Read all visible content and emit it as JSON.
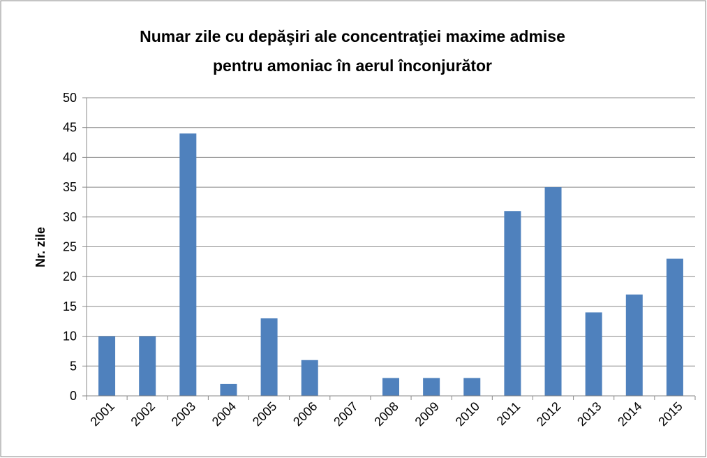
{
  "chart_data": {
    "type": "bar",
    "title": [
      "Numar zile cu depăşiri ale concentraţiei maxime admise",
      "pentru amoniac în aerul înconjurător"
    ],
    "y_label": "Nr. zile",
    "categories": [
      "2001",
      "2002",
      "2003",
      "2004",
      "2005",
      "2006",
      "2007",
      "2008",
      "2009",
      "2010",
      "2011",
      "2012",
      "2013",
      "2014",
      "2015"
    ],
    "values": [
      10,
      10,
      44,
      2,
      13,
      6,
      0,
      3,
      3,
      3,
      31,
      35,
      14,
      17,
      23
    ],
    "color": "#4f81bd",
    "ylim": [
      0,
      50
    ],
    "yticks": [
      0,
      5,
      10,
      15,
      20,
      25,
      30,
      35,
      40,
      45,
      50
    ],
    "grid": true
  }
}
